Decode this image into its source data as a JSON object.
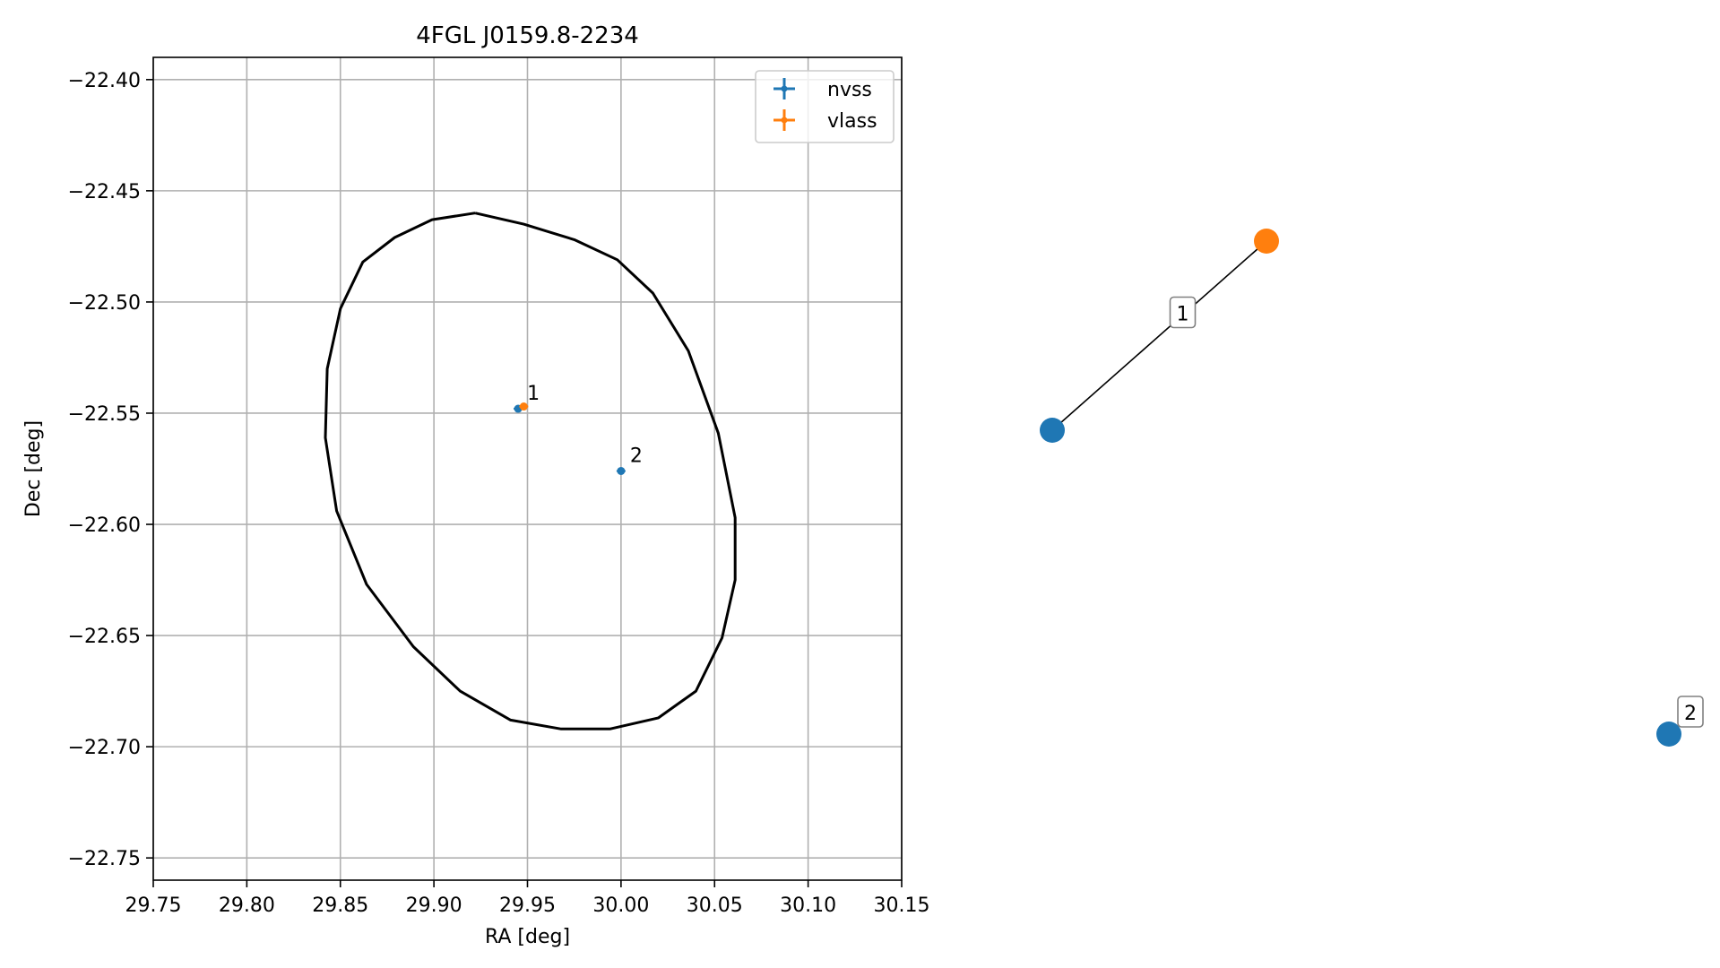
{
  "chart_data": [
    {
      "type": "scatter",
      "title": "4FGL J0159.8-2234",
      "xlabel": "RA [deg]",
      "ylabel": "Dec [deg]",
      "xlim": [
        29.75,
        30.15
      ],
      "ylim": [
        -22.76,
        -22.39
      ],
      "xticks": [
        "29.75",
        "29.80",
        "29.85",
        "29.90",
        "29.95",
        "30.00",
        "30.05",
        "30.10",
        "30.15"
      ],
      "yticks": [
        "−22.40",
        "−22.45",
        "−22.50",
        "−22.55",
        "−22.60",
        "−22.65",
        "−22.70",
        "−22.75"
      ],
      "grid": true,
      "legend_placement": "top-right",
      "series": [
        {
          "name": "nvss",
          "color": "#1f77b4",
          "points": [
            {
              "label": "1",
              "x": 29.945,
              "y": -22.548
            },
            {
              "label": "2",
              "x": 30.0,
              "y": -22.576
            }
          ]
        },
        {
          "name": "vlass",
          "color": "#ff7f0e",
          "points": [
            {
              "label": "",
              "x": 29.948,
              "y": -22.547
            }
          ]
        }
      ],
      "ellipse": {
        "color": "#000000",
        "points": [
          [
            29.922,
            -22.46
          ],
          [
            29.948,
            -22.465
          ],
          [
            29.975,
            -22.472
          ],
          [
            29.998,
            -22.481
          ],
          [
            30.017,
            -22.496
          ],
          [
            30.036,
            -22.522
          ],
          [
            30.052,
            -22.559
          ],
          [
            30.061,
            -22.597
          ],
          [
            30.061,
            -22.625
          ],
          [
            30.054,
            -22.651
          ],
          [
            30.04,
            -22.675
          ],
          [
            30.02,
            -22.687
          ],
          [
            29.994,
            -22.692
          ],
          [
            29.968,
            -22.692
          ],
          [
            29.941,
            -22.688
          ],
          [
            29.914,
            -22.675
          ],
          [
            29.889,
            -22.655
          ],
          [
            29.864,
            -22.627
          ],
          [
            29.848,
            -22.594
          ],
          [
            29.842,
            -22.561
          ],
          [
            29.843,
            -22.53
          ],
          [
            29.85,
            -22.503
          ],
          [
            29.862,
            -22.482
          ],
          [
            29.879,
            -22.471
          ],
          [
            29.899,
            -22.463
          ],
          [
            29.922,
            -22.46
          ]
        ]
      }
    },
    {
      "type": "network",
      "nodes": [
        {
          "id": "nvss-1",
          "color": "#1f77b4"
        },
        {
          "id": "vlass-1",
          "color": "#ff7f0e"
        },
        {
          "id": "nvss-2",
          "color": "#1f77b4"
        }
      ],
      "edges": [
        {
          "source": "nvss-1",
          "target": "vlass-1",
          "label": "1"
        }
      ],
      "node_labels": [
        {
          "node": "nvss-2",
          "label": "2"
        }
      ]
    }
  ]
}
